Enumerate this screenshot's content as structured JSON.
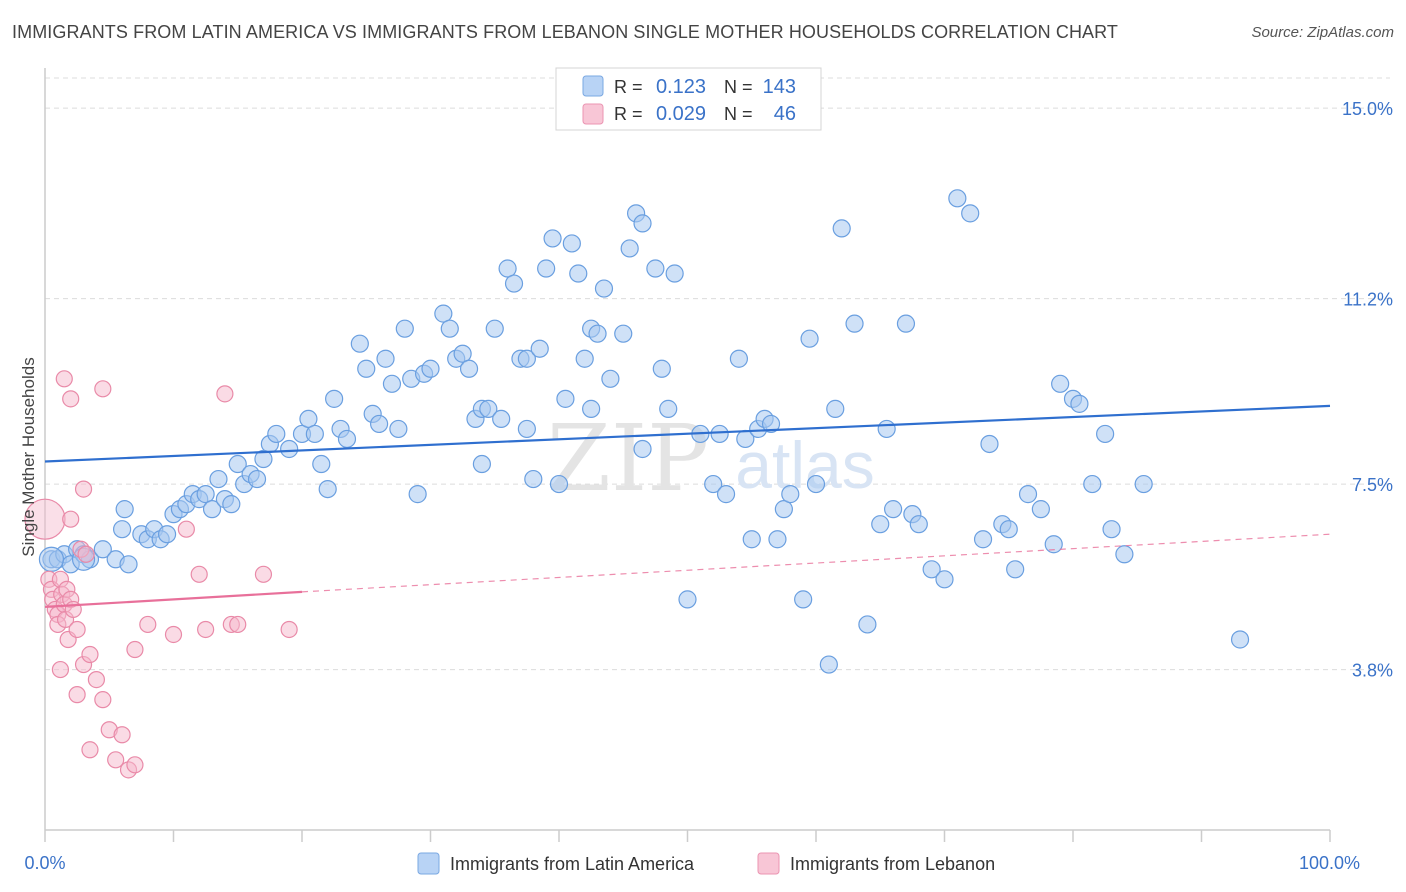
{
  "title": "IMMIGRANTS FROM LATIN AMERICA VS IMMIGRANTS FROM LEBANON SINGLE MOTHER HOUSEHOLDS CORRELATION CHART",
  "source": "Source: ZipAtlas.com",
  "watermark": {
    "left": "ZIP",
    "right": "atlas"
  },
  "colors": {
    "blue_fill": "#a8c8f0",
    "blue_stroke": "#6a9fe0",
    "blue_line": "#2f6fcf",
    "pink_fill": "#f5b8cb",
    "pink_stroke": "#e98aa8",
    "pink_line": "#e8709a",
    "tick_label": "#3a72c8",
    "grid": "#dddddd"
  },
  "legend": {
    "rows": [
      {
        "r_label": "R =",
        "r_value": "0.123",
        "n_label": "N =",
        "n_value": "143",
        "color": "#a8c8f0"
      },
      {
        "r_label": "R =",
        "r_value": "0.029",
        "n_label": "N =",
        "n_value": "46",
        "color": "#f5b8cb"
      }
    ]
  },
  "bottom_legend": [
    {
      "label": "Immigrants from Latin America",
      "color": "#a8c8f0"
    },
    {
      "label": "Immigrants from Lebanon",
      "color": "#f5b8cb"
    }
  ],
  "chart_data": {
    "type": "scatter",
    "title": "IMMIGRANTS FROM LATIN AMERICA VS IMMIGRANTS FROM LEBANON SINGLE MOTHER HOUSEHOLDS CORRELATION CHART",
    "xlabel": "",
    "ylabel": "Single Mother Households",
    "xlim": [
      0,
      100
    ],
    "ylim": [
      0.6,
      15.6
    ],
    "x_tick_labels": [
      {
        "value": 0,
        "label": "0.0%"
      },
      {
        "value": 100,
        "label": "100.0%"
      }
    ],
    "y_tick_labels": [
      {
        "value": 3.8,
        "label": "3.8%"
      },
      {
        "value": 7.5,
        "label": "7.5%"
      },
      {
        "value": 11.2,
        "label": "11.2%"
      },
      {
        "value": 15.0,
        "label": "15.0%"
      }
    ],
    "grid": true,
    "legend_position": "top-center",
    "series": [
      {
        "name": "Immigrants from Latin America",
        "color": "#a8c8f0",
        "trend": {
          "x": [
            0,
            100
          ],
          "y": [
            7.95,
            9.06
          ]
        },
        "points": [
          [
            0.5,
            6.0
          ],
          [
            1.0,
            6.0
          ],
          [
            1.5,
            6.1
          ],
          [
            2.0,
            5.9
          ],
          [
            2.5,
            6.2
          ],
          [
            3.0,
            6.1
          ],
          [
            3.5,
            6.0
          ],
          [
            4.5,
            6.2
          ],
          [
            5.5,
            6.0
          ],
          [
            6.0,
            6.6
          ],
          [
            6.2,
            7.0
          ],
          [
            6.5,
            5.9
          ],
          [
            7.5,
            6.5
          ],
          [
            8.0,
            6.4
          ],
          [
            8.5,
            6.6
          ],
          [
            9.0,
            6.4
          ],
          [
            9.5,
            6.5
          ],
          [
            10.0,
            6.9
          ],
          [
            10.5,
            7.0
          ],
          [
            11.0,
            7.1
          ],
          [
            11.5,
            7.3
          ],
          [
            12.0,
            7.2
          ],
          [
            12.5,
            7.3
          ],
          [
            13.0,
            7.0
          ],
          [
            13.5,
            7.6
          ],
          [
            14.0,
            7.2
          ],
          [
            14.5,
            7.1
          ],
          [
            15.0,
            7.9
          ],
          [
            15.5,
            7.5
          ],
          [
            16.0,
            7.7
          ],
          [
            16.5,
            7.6
          ],
          [
            17.5,
            8.3
          ],
          [
            17.0,
            8.0
          ],
          [
            18.0,
            8.5
          ],
          [
            19.0,
            8.2
          ],
          [
            20.0,
            8.5
          ],
          [
            20.5,
            8.8
          ],
          [
            21.0,
            8.5
          ],
          [
            21.5,
            7.9
          ],
          [
            22.0,
            7.4
          ],
          [
            22.5,
            9.2
          ],
          [
            23.0,
            8.6
          ],
          [
            23.5,
            8.4
          ],
          [
            24.5,
            10.3
          ],
          [
            25.0,
            9.8
          ],
          [
            25.5,
            8.9
          ],
          [
            26.5,
            10.0
          ],
          [
            27.0,
            9.5
          ],
          [
            28.0,
            10.6
          ],
          [
            27.5,
            8.6
          ],
          [
            28.5,
            9.6
          ],
          [
            29.5,
            9.7
          ],
          [
            30.0,
            9.8
          ],
          [
            31.0,
            10.9
          ],
          [
            31.5,
            10.6
          ],
          [
            32.0,
            10.0
          ],
          [
            32.5,
            10.1
          ],
          [
            33.0,
            9.8
          ],
          [
            33.5,
            8.8
          ],
          [
            34.0,
            9.0
          ],
          [
            34.5,
            9.0
          ],
          [
            35.0,
            10.6
          ],
          [
            35.5,
            8.8
          ],
          [
            34.0,
            7.9
          ],
          [
            36.0,
            11.8
          ],
          [
            36.5,
            11.5
          ],
          [
            37.0,
            10.0
          ],
          [
            37.5,
            10.0
          ],
          [
            38.0,
            7.6
          ],
          [
            38.5,
            10.2
          ],
          [
            39.0,
            11.8
          ],
          [
            39.5,
            12.4
          ],
          [
            40.0,
            7.5
          ],
          [
            40.5,
            9.2
          ],
          [
            41.0,
            12.3
          ],
          [
            41.5,
            11.7
          ],
          [
            42.0,
            10.0
          ],
          [
            42.5,
            10.6
          ],
          [
            43.0,
            10.5
          ],
          [
            43.5,
            11.4
          ],
          [
            44.0,
            9.6
          ],
          [
            45.0,
            10.5
          ],
          [
            45.5,
            12.2
          ],
          [
            46.0,
            12.9
          ],
          [
            46.5,
            12.7
          ],
          [
            47.5,
            11.8
          ],
          [
            48.0,
            9.8
          ],
          [
            48.5,
            9.0
          ],
          [
            49.0,
            11.7
          ],
          [
            50.0,
            5.2
          ],
          [
            51.0,
            8.5
          ],
          [
            52.0,
            7.5
          ],
          [
            52.5,
            8.5
          ],
          [
            53.0,
            7.3
          ],
          [
            54.0,
            10.0
          ],
          [
            54.5,
            8.4
          ],
          [
            55.0,
            6.4
          ],
          [
            55.5,
            8.6
          ],
          [
            56.0,
            8.8
          ],
          [
            56.5,
            8.7
          ],
          [
            57.0,
            6.4
          ],
          [
            57.5,
            7.0
          ],
          [
            58.0,
            7.3
          ],
          [
            59.0,
            5.2
          ],
          [
            59.5,
            10.4
          ],
          [
            60.0,
            7.5
          ],
          [
            61.0,
            3.9
          ],
          [
            61.5,
            9.0
          ],
          [
            62.0,
            12.6
          ],
          [
            63.0,
            10.7
          ],
          [
            64.0,
            4.7
          ],
          [
            65.0,
            6.7
          ],
          [
            65.5,
            8.6
          ],
          [
            66.0,
            7.0
          ],
          [
            67.0,
            10.7
          ],
          [
            67.5,
            6.9
          ],
          [
            68.0,
            6.7
          ],
          [
            69.0,
            5.8
          ],
          [
            70.0,
            5.6
          ],
          [
            71.0,
            13.2
          ],
          [
            72.0,
            12.9
          ],
          [
            73.0,
            6.4
          ],
          [
            73.5,
            8.3
          ],
          [
            74.5,
            6.7
          ],
          [
            75.0,
            6.6
          ],
          [
            75.5,
            5.8
          ],
          [
            76.5,
            7.3
          ],
          [
            77.5,
            7.0
          ],
          [
            78.5,
            6.3
          ],
          [
            79.0,
            9.5
          ],
          [
            80.0,
            9.2
          ],
          [
            80.5,
            9.1
          ],
          [
            81.5,
            7.5
          ],
          [
            82.5,
            8.5
          ],
          [
            83.0,
            6.6
          ],
          [
            84.0,
            6.1
          ],
          [
            85.5,
            7.5
          ],
          [
            93.0,
            4.4
          ],
          [
            46.5,
            8.2
          ],
          [
            42.5,
            9.0
          ],
          [
            37.5,
            8.6
          ],
          [
            26.0,
            8.7
          ],
          [
            29.0,
            7.3
          ]
        ]
      },
      {
        "name": "Immigrants from Lebanon",
        "color": "#f5b8cb",
        "trend": {
          "x": [
            0,
            20
          ],
          "y": [
            5.05,
            5.35
          ]
        },
        "trend_extended": {
          "x": [
            20,
            100
          ],
          "y": [
            5.35,
            6.5
          ]
        },
        "points": [
          [
            0.0,
            6.8
          ],
          [
            0.3,
            5.6
          ],
          [
            0.5,
            5.4
          ],
          [
            0.6,
            5.2
          ],
          [
            0.8,
            5.0
          ],
          [
            1.0,
            4.9
          ],
          [
            1.0,
            4.7
          ],
          [
            1.2,
            5.6
          ],
          [
            1.3,
            5.3
          ],
          [
            1.5,
            5.1
          ],
          [
            1.6,
            4.8
          ],
          [
            1.7,
            5.4
          ],
          [
            1.8,
            4.4
          ],
          [
            2.0,
            5.2
          ],
          [
            2.2,
            5.0
          ],
          [
            2.5,
            4.6
          ],
          [
            2.8,
            6.2
          ],
          [
            3.0,
            3.9
          ],
          [
            3.2,
            6.1
          ],
          [
            3.5,
            4.1
          ],
          [
            4.0,
            3.6
          ],
          [
            4.5,
            3.2
          ],
          [
            5.0,
            2.6
          ],
          [
            5.5,
            2.0
          ],
          [
            6.0,
            2.5
          ],
          [
            6.5,
            1.8
          ],
          [
            7.0,
            1.9
          ],
          [
            1.5,
            9.6
          ],
          [
            2.0,
            9.2
          ],
          [
            4.5,
            9.4
          ],
          [
            3.0,
            7.4
          ],
          [
            7.0,
            4.2
          ],
          [
            8.0,
            4.7
          ],
          [
            10.0,
            4.5
          ],
          [
            11.0,
            6.6
          ],
          [
            12.0,
            5.7
          ],
          [
            12.5,
            4.6
          ],
          [
            14.0,
            9.3
          ],
          [
            14.5,
            4.7
          ],
          [
            15.0,
            4.7
          ],
          [
            17.0,
            5.7
          ],
          [
            19.0,
            4.6
          ],
          [
            2.0,
            6.8
          ],
          [
            2.5,
            3.3
          ],
          [
            3.5,
            2.2
          ],
          [
            1.2,
            3.8
          ]
        ]
      }
    ]
  }
}
